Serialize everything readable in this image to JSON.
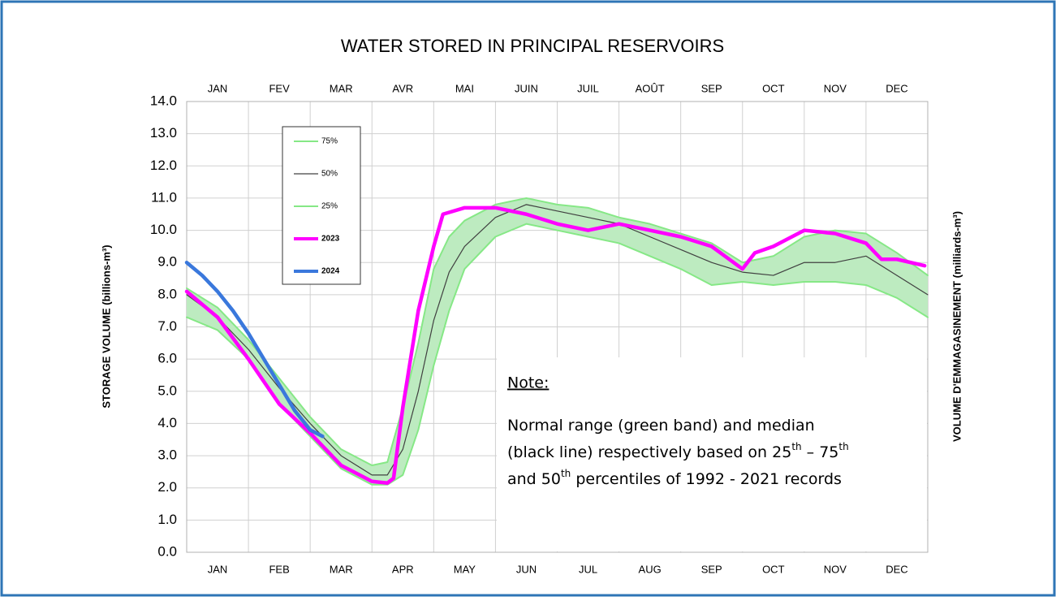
{
  "chart_data": {
    "type": "line",
    "title": "WATER STORED IN PRINCIPAL RESERVOIRS",
    "ylabel": "STORAGE VOLUME (billions-m³)",
    "y2label": "VOLUME D'EMMAGASINEMENT (milliards-m³)",
    "categories": [
      "JAN",
      "FEB",
      "MAR",
      "APR",
      "MAY",
      "JUN",
      "JUL",
      "AUG",
      "SEP",
      "OCT",
      "NOV",
      "DEC"
    ],
    "top_categories": [
      "JAN",
      "FEV",
      "MAR",
      "AVR",
      "MAI",
      "JUIN",
      "JUIL",
      "AOÛT",
      "SEP",
      "OCT",
      "NOV",
      "DEC"
    ],
    "xlim": [
      0,
      12
    ],
    "ylim": [
      0,
      14
    ],
    "yticks": [
      {
        "value": 0,
        "label": "0.0"
      },
      {
        "value": 1,
        "label": "1.0"
      },
      {
        "value": 2,
        "label": "2.0"
      },
      {
        "value": 3,
        "label": "3.0"
      },
      {
        "value": 4,
        "label": "4.0"
      },
      {
        "value": 5,
        "label": "5.0"
      },
      {
        "value": 6,
        "label": "6.0"
      },
      {
        "value": 7,
        "label": "7.0"
      },
      {
        "value": 8,
        "label": "8.0"
      },
      {
        "value": 9,
        "label": "9.0"
      },
      {
        "value": 10,
        "label": "10.0"
      },
      {
        "value": 11,
        "label": "11.0"
      },
      {
        "value": 12,
        "label": "12.0"
      },
      {
        "value": 13,
        "label": "13.0"
      },
      {
        "value": 14,
        "label": "14.0"
      }
    ],
    "grid": true,
    "legend": "upper left",
    "band_color": "#bdebc0",
    "series": [
      {
        "name": "75%",
        "color": "#86e886",
        "x": [
          0,
          0.5,
          1,
          1.5,
          2,
          2.5,
          3,
          3.25,
          3.5,
          3.75,
          4,
          4.25,
          4.5,
          5,
          5.5,
          6,
          6.5,
          7,
          7.5,
          8,
          8.5,
          9,
          9.5,
          10,
          10.5,
          11,
          11.5,
          12
        ],
        "values": [
          8.2,
          7.6,
          6.6,
          5.4,
          4.2,
          3.2,
          2.7,
          2.8,
          4.5,
          6.5,
          8.8,
          9.8,
          10.3,
          10.8,
          11.0,
          10.8,
          10.7,
          10.4,
          10.2,
          9.9,
          9.6,
          9.0,
          9.2,
          9.8,
          10.0,
          9.9,
          9.3,
          8.6
        ]
      },
      {
        "name": "50%",
        "color": "#404040",
        "x": [
          0,
          0.5,
          1,
          1.5,
          2,
          2.5,
          3,
          3.25,
          3.5,
          3.75,
          4,
          4.25,
          4.5,
          5,
          5.5,
          6,
          6.5,
          7,
          7.5,
          8,
          8.5,
          9,
          9.5,
          10,
          10.5,
          11,
          11.5,
          12
        ],
        "values": [
          8.0,
          7.3,
          6.3,
          5.1,
          4.0,
          3.0,
          2.4,
          2.4,
          3.2,
          5.0,
          7.2,
          8.7,
          9.5,
          10.4,
          10.8,
          10.6,
          10.4,
          10.2,
          9.8,
          9.4,
          9.0,
          8.7,
          8.6,
          9.0,
          9.0,
          9.2,
          8.6,
          8.0
        ]
      },
      {
        "name": "25%",
        "color": "#86e886",
        "x": [
          0,
          0.5,
          1,
          1.5,
          2,
          2.5,
          3,
          3.25,
          3.5,
          3.75,
          4,
          4.25,
          4.5,
          5,
          5.5,
          6,
          6.5,
          7,
          7.5,
          8,
          8.5,
          9,
          9.5,
          10,
          10.5,
          11,
          11.5,
          12
        ],
        "values": [
          7.3,
          6.9,
          6.0,
          4.6,
          3.6,
          2.6,
          2.1,
          2.1,
          2.4,
          3.8,
          5.8,
          7.5,
          8.8,
          9.8,
          10.2,
          10.0,
          9.8,
          9.6,
          9.2,
          8.8,
          8.3,
          8.4,
          8.3,
          8.4,
          8.4,
          8.3,
          7.9,
          7.3
        ]
      },
      {
        "name": "2023",
        "color": "#ff00ff",
        "x": [
          0,
          0.5,
          1,
          1.5,
          2,
          2.5,
          3,
          3.25,
          3.35,
          3.5,
          3.75,
          4,
          4.15,
          4.5,
          5,
          5.5,
          6,
          6.5,
          7,
          7.5,
          8,
          8.5,
          9,
          9.2,
          9.5,
          10,
          10.5,
          11,
          11.25,
          11.5,
          11.95
        ],
        "values": [
          8.1,
          7.3,
          6.0,
          4.6,
          3.7,
          2.7,
          2.2,
          2.15,
          2.3,
          4.5,
          7.5,
          9.5,
          10.5,
          10.7,
          10.7,
          10.5,
          10.2,
          10.0,
          10.2,
          10.0,
          9.8,
          9.5,
          8.8,
          9.3,
          9.5,
          10.0,
          9.9,
          9.6,
          9.1,
          9.1,
          8.9
        ]
      },
      {
        "name": "2024",
        "color": "#3a78dc",
        "x": [
          0,
          0.25,
          0.5,
          0.75,
          1,
          1.25,
          1.5,
          1.75,
          2,
          2.2
        ],
        "values": [
          9.0,
          8.6,
          8.1,
          7.5,
          6.8,
          6.0,
          5.2,
          4.4,
          3.8,
          3.6
        ]
      }
    ],
    "note": {
      "title": "Note:",
      "lines": [
        [
          "Normal range (green band) and median"
        ],
        [
          "(black line) respectively based on 25",
          "th",
          "  –  75",
          "th"
        ],
        [
          "and 50",
          "th",
          " percentiles  of 1992  -  2021 records"
        ]
      ]
    }
  }
}
